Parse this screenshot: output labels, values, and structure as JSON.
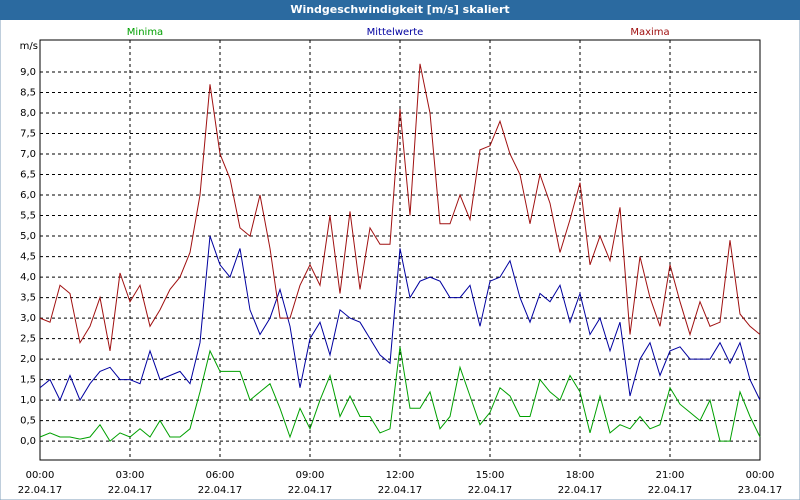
{
  "chart_data": {
    "type": "line",
    "title": "Windgeschwindigkeit [m/s] skaliert",
    "y_label": "m/s",
    "x": [
      0,
      20,
      40,
      60,
      80,
      100,
      120,
      140,
      160,
      180,
      200,
      220,
      240,
      260,
      280,
      300,
      320,
      340,
      360,
      380,
      400,
      420,
      440,
      460,
      480,
      500,
      520,
      540,
      560,
      580,
      600,
      620,
      640,
      660,
      680,
      700,
      720,
      740,
      760,
      780,
      800,
      820,
      840,
      860,
      880,
      900,
      920,
      940,
      960,
      980,
      1000,
      1020,
      1040,
      1060,
      1080,
      1100,
      1120,
      1140,
      1160,
      1180,
      1200,
      1220,
      1240,
      1260,
      1280,
      1300,
      1320,
      1340,
      1360,
      1380,
      1400,
      1420,
      1440
    ],
    "xlim": [
      0,
      1440
    ],
    "xticks": [
      {
        "value": 0,
        "label": "00:00"
      },
      {
        "value": 180,
        "label": "03:00"
      },
      {
        "value": 360,
        "label": "06:00"
      },
      {
        "value": 540,
        "label": "09:00"
      },
      {
        "value": 720,
        "label": "12:00"
      },
      {
        "value": 900,
        "label": "15:00"
      },
      {
        "value": 1080,
        "label": "18:00"
      },
      {
        "value": 1260,
        "label": "21:00"
      },
      {
        "value": 1440,
        "label": "00:00"
      }
    ],
    "xtick_dates": [
      "22.04.17",
      "22.04.17",
      "22.04.17",
      "22.04.17",
      "22.04.17",
      "22.04.17",
      "22.04.17",
      "22.04.17",
      "23.04.17"
    ],
    "ylim": [
      -0.46,
      9.78
    ],
    "yticks": [
      {
        "value": 0,
        "label": "0,0"
      },
      {
        "value": 0.5,
        "label": "0,5"
      },
      {
        "value": 1,
        "label": "1,0"
      },
      {
        "value": 1.5,
        "label": "1,5"
      },
      {
        "value": 2,
        "label": "2,0"
      },
      {
        "value": 2.5,
        "label": "2,5"
      },
      {
        "value": 3,
        "label": "3,0"
      },
      {
        "value": 3.5,
        "label": "3,5"
      },
      {
        "value": 4,
        "label": "4,0"
      },
      {
        "value": 4.5,
        "label": "4,5"
      },
      {
        "value": 5,
        "label": "5,0"
      },
      {
        "value": 5.5,
        "label": "5,5"
      },
      {
        "value": 6,
        "label": "6,0"
      },
      {
        "value": 6.5,
        "label": "6,5"
      },
      {
        "value": 7,
        "label": "7,0"
      },
      {
        "value": 7.5,
        "label": "7,5"
      },
      {
        "value": 8,
        "label": "8,0"
      },
      {
        "value": 8.5,
        "label": "8,5"
      },
      {
        "value": 9,
        "label": "9,0"
      }
    ],
    "grid": true,
    "series": [
      {
        "name": "Minima",
        "color": "#00a000",
        "values": [
          0.1,
          0.2,
          0.1,
          0.1,
          0.05,
          0.1,
          0.4,
          0.0,
          0.2,
          0.1,
          0.3,
          0.1,
          0.5,
          0.1,
          0.1,
          0.3,
          1.2,
          2.2,
          1.7,
          1.7,
          1.7,
          1.0,
          1.2,
          1.4,
          0.8,
          0.1,
          0.8,
          0.3,
          1.0,
          1.6,
          0.6,
          1.1,
          0.6,
          0.6,
          0.2,
          0.3,
          2.3,
          0.8,
          0.8,
          1.2,
          0.3,
          0.6,
          1.8,
          1.1,
          0.4,
          0.7,
          1.3,
          1.1,
          0.6,
          0.6,
          1.5,
          1.2,
          1.0,
          1.6,
          1.2,
          0.2,
          1.1,
          0.2,
          0.4,
          0.3,
          0.6,
          0.3,
          0.4,
          1.3,
          0.9,
          0.7,
          0.5,
          1.0,
          0.0,
          0.0,
          1.2,
          0.6,
          0.1
        ]
      },
      {
        "name": "Mittelwerte",
        "color": "#0000a0",
        "values": [
          1.3,
          1.5,
          1.0,
          1.6,
          1.0,
          1.4,
          1.7,
          1.8,
          1.5,
          1.5,
          1.4,
          2.2,
          1.5,
          1.6,
          1.7,
          1.4,
          2.4,
          5.0,
          4.3,
          4.0,
          4.7,
          3.2,
          2.6,
          3.0,
          3.7,
          2.8,
          1.3,
          2.5,
          2.9,
          2.1,
          3.2,
          3.0,
          2.9,
          2.5,
          2.1,
          1.9,
          4.7,
          3.5,
          3.9,
          4.0,
          3.9,
          3.5,
          3.5,
          3.8,
          2.8,
          3.9,
          4.0,
          4.4,
          3.5,
          2.9,
          3.6,
          3.4,
          3.8,
          2.9,
          3.6,
          2.6,
          3.0,
          2.2,
          2.9,
          1.1,
          2.0,
          2.4,
          1.6,
          2.2,
          2.3,
          2.0,
          2.0,
          2.0,
          2.4,
          1.9,
          2.4,
          1.5,
          1.0
        ]
      },
      {
        "name": "Maxima",
        "color": "#a01010",
        "values": [
          3.0,
          2.9,
          3.8,
          3.6,
          2.4,
          2.8,
          3.5,
          2.2,
          4.1,
          3.4,
          3.8,
          2.8,
          3.2,
          3.7,
          4.0,
          4.6,
          6.0,
          8.7,
          7.0,
          6.4,
          5.2,
          5.0,
          6.0,
          4.7,
          3.0,
          3.0,
          3.8,
          4.3,
          3.8,
          5.5,
          3.6,
          5.6,
          3.7,
          5.2,
          4.8,
          4.8,
          8.1,
          5.5,
          9.2,
          8.0,
          5.3,
          5.3,
          6.0,
          5.4,
          7.1,
          7.2,
          7.8,
          7.0,
          6.5,
          5.3,
          6.5,
          5.8,
          4.6,
          5.4,
          6.3,
          4.3,
          5.0,
          4.4,
          5.7,
          2.6,
          4.5,
          3.5,
          2.8,
          4.3,
          3.4,
          2.6,
          3.4,
          2.8,
          2.9,
          4.9,
          3.1,
          2.8,
          2.6
        ]
      }
    ]
  }
}
